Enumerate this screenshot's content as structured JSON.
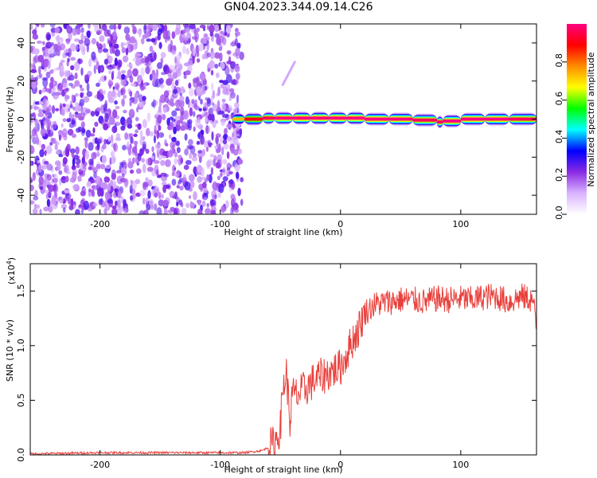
{
  "figure_title": "GN04.2023.344.09.14.C26",
  "chart_data": [
    {
      "type": "heatmap",
      "xlabel": "Height of straight line (km)",
      "ylabel": "Frequency (Hz)",
      "xlim": [
        -258,
        163
      ],
      "ylim": [
        -50,
        50
      ],
      "xticks": [
        -200,
        -100,
        0,
        100
      ],
      "yticks": [
        -40,
        -20,
        0,
        20,
        40
      ],
      "colorbar": {
        "label": "Normalized spectral amplitude",
        "range": [
          0,
          1
        ],
        "ticks": [
          "0.0",
          "0.2",
          "0.4",
          "0.6",
          "0.8"
        ],
        "colormap": [
          "#ffffff",
          "#d9b3ff",
          "#8a2be2",
          "#0000ff",
          "#00ffff",
          "#00ff00",
          "#ffff00",
          "#ff8c00",
          "#ff0000",
          "#ff0080"
        ]
      },
      "noise_region_x": [
        -258,
        -82
      ],
      "signal_band": [
        {
          "x": -90,
          "f": 0,
          "amp": 0.5
        },
        {
          "x": -80,
          "f": 0,
          "amp": 0.75
        },
        {
          "x": -65,
          "f": 0,
          "amp": 0.8
        },
        {
          "x": -55,
          "f": 1,
          "amp": 0.85
        },
        {
          "x": -40,
          "f": 0,
          "amp": 0.85
        },
        {
          "x": -25,
          "f": 1,
          "amp": 0.9
        },
        {
          "x": -10,
          "f": 0,
          "amp": 0.85
        },
        {
          "x": 5,
          "f": 1,
          "amp": 0.9
        },
        {
          "x": 20,
          "f": 0,
          "amp": 0.85
        },
        {
          "x": 40,
          "f": 0,
          "amp": 0.85
        },
        {
          "x": 60,
          "f": 0,
          "amp": 0.85
        },
        {
          "x": 80,
          "f": -1,
          "amp": 0.8
        },
        {
          "x": 85,
          "f": -2,
          "amp": 0.85
        },
        {
          "x": 100,
          "f": 0,
          "amp": 0.85
        },
        {
          "x": 120,
          "f": 0,
          "amp": 0.85
        },
        {
          "x": 140,
          "f": 0,
          "amp": 0.85
        },
        {
          "x": 163,
          "f": 0,
          "amp": 0.8
        }
      ]
    },
    {
      "type": "line",
      "xlabel": "Height of straight line (km)",
      "ylabel": "SNR (10 * v/v)",
      "y_multiplier": "(x10",
      "y_multiplier_exp": "4",
      "y_multiplier_close": ")",
      "xlim": [
        -258,
        163
      ],
      "ylim": [
        0,
        1.75
      ],
      "xticks": [
        -200,
        -100,
        0,
        100
      ],
      "yticks": [
        "0.0",
        "0.5",
        "1.0",
        "1.5"
      ],
      "color": "#e8403c",
      "series": [
        {
          "x": [
            -258,
            -200,
            -150,
            -100,
            -80,
            -65,
            -55,
            -50,
            -48,
            -45,
            -42,
            -40,
            -35,
            -30,
            -25,
            -20,
            -15,
            -10,
            -5,
            0,
            5,
            10,
            15,
            20,
            25,
            30,
            40,
            50,
            60,
            70,
            80,
            90,
            100,
            110,
            120,
            130,
            140,
            150,
            160,
            163
          ],
          "y": [
            0.01,
            0.02,
            0.02,
            0.02,
            0.02,
            0.04,
            0.1,
            0.25,
            0.6,
            0.75,
            0.3,
            0.55,
            0.55,
            0.6,
            0.65,
            0.7,
            0.72,
            0.75,
            0.78,
            0.8,
            0.92,
            1.05,
            1.15,
            1.3,
            1.35,
            1.38,
            1.4,
            1.42,
            1.42,
            1.4,
            1.43,
            1.42,
            1.43,
            1.42,
            1.45,
            1.45,
            1.4,
            1.45,
            1.42,
            1.15
          ]
        }
      ]
    }
  ]
}
